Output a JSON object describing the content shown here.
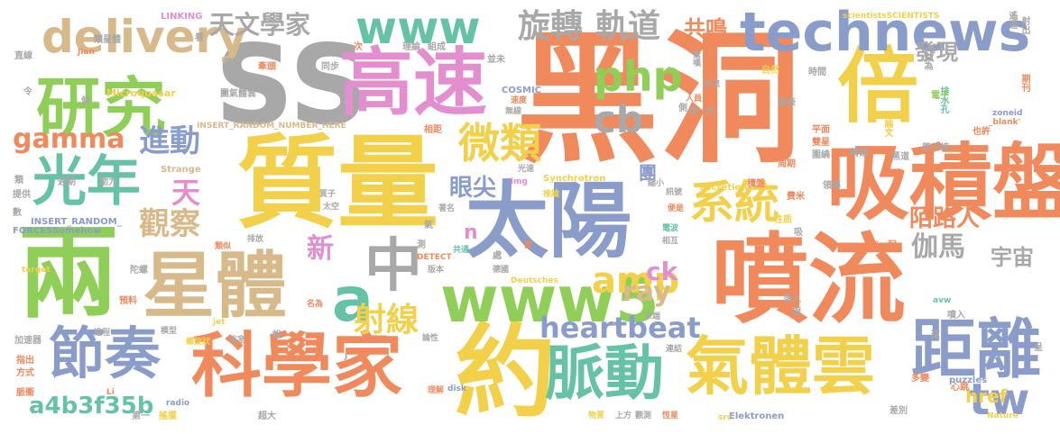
{
  "palette": {
    "orange": "#f08a5d",
    "gray": "#a8a8a8",
    "blue": "#8a9cc9",
    "green": "#8fcf57",
    "yellow": "#f3d04a",
    "tan": "#d8b98a",
    "pink": "#e38fcf",
    "teal": "#66c2a5"
  },
  "words": [
    {
      "text": "黑洞",
      "color": "orange"
    },
    {
      "text": "SS",
      "color": "gray"
    },
    {
      "text": "質量",
      "color": "yellow"
    },
    {
      "text": "噴流",
      "color": "orange"
    },
    {
      "text": "約",
      "color": "yellow"
    },
    {
      "text": "太陽",
      "color": "blue"
    },
    {
      "text": "倍",
      "color": "yellow"
    },
    {
      "text": "兩",
      "color": "green"
    },
    {
      "text": "吸積盤",
      "color": "orange"
    },
    {
      "text": "科學家",
      "color": "orange"
    },
    {
      "text": "星體",
      "color": "tan"
    },
    {
      "text": "高速",
      "color": "pink"
    },
    {
      "text": "研究",
      "color": "green"
    },
    {
      "text": "氣體雲",
      "color": "yellow"
    },
    {
      "text": "距離",
      "color": "blue"
    },
    {
      "text": "technews",
      "color": "blue"
    },
    {
      "text": "www5",
      "color": "green"
    },
    {
      "text": "脈動",
      "color": "teal"
    },
    {
      "text": "節奏",
      "color": "blue"
    },
    {
      "text": "光年",
      "color": "teal"
    },
    {
      "text": "delivery",
      "color": "tan"
    },
    {
      "text": "www",
      "color": "teal"
    },
    {
      "text": "中",
      "color": "gray"
    },
    {
      "text": "系統",
      "color": "yellow"
    },
    {
      "text": "微類",
      "color": "yellow"
    },
    {
      "text": "旋轉",
      "color": "gray"
    },
    {
      "text": "軌道",
      "color": "gray"
    },
    {
      "text": "天文學家",
      "color": "gray"
    },
    {
      "text": "php",
      "color": "green"
    },
    {
      "text": "amp",
      "color": "yellow"
    },
    {
      "text": "cb",
      "color": "gray"
    },
    {
      "text": "tw",
      "color": "blue"
    },
    {
      "text": "a",
      "color": "teal"
    },
    {
      "text": "進動",
      "color": "blue"
    },
    {
      "text": "觀察",
      "color": "tan"
    },
    {
      "text": "射線",
      "color": "yellow"
    },
    {
      "text": "heartbeat",
      "color": "blue"
    },
    {
      "text": "gamma",
      "color": "orange"
    },
    {
      "text": "a4b3f35b",
      "color": "teal"
    },
    {
      "text": "天",
      "color": "pink"
    },
    {
      "text": "新",
      "color": "pink"
    },
    {
      "text": "ray",
      "color": "tan"
    },
    {
      "text": "伽馬",
      "color": "gray"
    },
    {
      "text": "宇宙",
      "color": "gray"
    },
    {
      "text": "陌路人",
      "color": "orange"
    },
    {
      "text": "發現",
      "color": "gray"
    },
    {
      "text": "共鳴",
      "color": "orange"
    },
    {
      "text": "眼尖",
      "color": "blue"
    },
    {
      "text": "ck",
      "color": "pink"
    },
    {
      "text": "href",
      "color": "yellow"
    },
    {
      "text": "n",
      "color": "pink"
    },
    {
      "text": "團",
      "color": "blue"
    },
    {
      "text": "LINKING",
      "color": "pink"
    },
    {
      "text": "Microquasar",
      "color": "yellow"
    },
    {
      "text": "INSERT_RANDOM_NUMBER_HERE",
      "color": "tan"
    },
    {
      "text": "COSMIC",
      "color": "blue"
    },
    {
      "text": "INSERT_RANDOM_",
      "color": "blue"
    },
    {
      "text": "FORCESSomehow",
      "color": "blue"
    },
    {
      "text": "Synchrotron",
      "color": "yellow"
    },
    {
      "text": "accretion",
      "color": "yellow"
    },
    {
      "text": "Strange",
      "color": "tan"
    },
    {
      "text": "DETECT",
      "color": "orange"
    },
    {
      "text": "Deutsches",
      "color": "yellow"
    },
    {
      "text": "Elektronen",
      "color": "blue"
    },
    {
      "text": "puzzles",
      "color": "blue"
    },
    {
      "text": "Nature",
      "color": "yellow"
    },
    {
      "text": "scientistsSCIENTISTS",
      "color": "yellow"
    },
    {
      "text": "zoneid",
      "color": "blue"
    },
    {
      "text": "_blank'",
      "color": "orange"
    },
    {
      "text": "target",
      "color": "yellow"
    },
    {
      "text": "disk",
      "color": "blue"
    },
    {
      "text": "radio",
      "color": "blue"
    },
    {
      "text": "jet",
      "color": "yellow"
    },
    {
      "text": "img",
      "color": "pink"
    },
    {
      "text": "src",
      "color": "yellow"
    },
    {
      "text": "avw",
      "color": "teal"
    },
    {
      "text": "Jian",
      "color": "orange"
    },
    {
      "text": "Li",
      "color": "orange"
    },
    {
      "text": "J",
      "color": "gray"
    },
    {
      "text": "論文",
      "color": "yellow"
    },
    {
      "text": "自然",
      "color": "yellow"
    },
    {
      "text": "時間",
      "color": "gray"
    },
    {
      "text": "排水孔",
      "color": "teal"
    },
    {
      "text": "電子",
      "color": "green"
    },
    {
      "text": "平面",
      "color": "orange"
    },
    {
      "text": "雙星",
      "color": "orange"
    },
    {
      "text": "也許",
      "color": "orange"
    },
    {
      "text": "原子核",
      "color": "gray"
    },
    {
      "text": "黑道",
      "color": "gray"
    },
    {
      "text": "周期",
      "color": "orange"
    },
    {
      "text": "圍繞",
      "color": "gray"
    },
    {
      "text": "精確",
      "color": "gray"
    },
    {
      "text": "領導",
      "color": "gray"
    },
    {
      "text": "費米",
      "color": "orange"
    },
    {
      "text": "積盤",
      "color": "orange"
    },
    {
      "text": "性质",
      "color": "yellow"
    },
    {
      "text": "在一起",
      "color": "orange"
    },
    {
      "text": "落入",
      "color": "gray"
    },
    {
      "text": "噴入",
      "color": "gray"
    },
    {
      "text": "多變",
      "color": "orange"
    },
    {
      "text": "差別",
      "color": "gray"
    },
    {
      "text": "心跳",
      "color": "orange"
    },
    {
      "text": "遙遠",
      "color": "gray"
    },
    {
      "text": "射出",
      "color": "gray"
    },
    {
      "text": "期刊",
      "color": "orange"
    },
    {
      "text": "點為",
      "color": "gray"
    },
    {
      "text": "發表",
      "color": "gray"
    },
    {
      "text": "人員",
      "color": "orange"
    },
    {
      "text": "進一步",
      "color": "gray"
    },
    {
      "text": "驚嘆",
      "color": "gray"
    },
    {
      "text": "水流",
      "color": "gray"
    },
    {
      "text": "速度",
      "color": "orange"
    },
    {
      "text": "無線",
      "color": "gray"
    },
    {
      "text": "光速",
      "color": "gray"
    },
    {
      "text": "縮小",
      "color": "gray"
    },
    {
      "text": "訊號",
      "color": "gray"
    },
    {
      "text": "便是",
      "color": "orange"
    },
    {
      "text": "電波",
      "color": "teal"
    },
    {
      "text": "相互",
      "color": "gray"
    },
    {
      "text": "末端",
      "color": "gray"
    },
    {
      "text": "連結",
      "color": "gray"
    },
    {
      "text": "觀測",
      "color": "gray"
    },
    {
      "text": "恆星",
      "color": "orange"
    },
    {
      "text": "上方",
      "color": "gray"
    },
    {
      "text": "物質",
      "color": "yellow"
    },
    {
      "text": "理解",
      "color": "orange"
    },
    {
      "text": "論性",
      "color": "gray"
    },
    {
      "text": "數百萬",
      "color": "orange"
    },
    {
      "text": "德國",
      "color": "gray"
    },
    {
      "text": "版本",
      "color": "gray"
    },
    {
      "text": "共通",
      "color": "teal"
    },
    {
      "text": "著名",
      "color": "gray"
    },
    {
      "text": "推論",
      "color": "yellow"
    },
    {
      "text": "太空",
      "color": "gray"
    },
    {
      "text": "質子",
      "color": "gray"
    },
    {
      "text": "名為",
      "color": "orange"
    },
    {
      "text": "類似",
      "color": "orange"
    },
    {
      "text": "排放",
      "color": "gray"
    },
    {
      "text": "模型",
      "color": "gray"
    },
    {
      "text": "螺旋狀",
      "color": "yellow"
    },
    {
      "text": "浴室",
      "color": "gray"
    },
    {
      "text": "過程",
      "color": "gray"
    },
    {
      "text": "加速器",
      "color": "gray"
    },
    {
      "text": "指出",
      "color": "orange"
    },
    {
      "text": "方式",
      "color": "orange"
    },
    {
      "text": "脈衝",
      "color": "orange"
    },
    {
      "text": "第一",
      "color": "gray"
    },
    {
      "text": "搖擺",
      "color": "yellow"
    },
    {
      "text": "超大",
      "color": "gray"
    },
    {
      "text": "預料",
      "color": "orange"
    },
    {
      "text": "陀螺",
      "color": "gray"
    },
    {
      "text": "提供",
      "color": "gray"
    },
    {
      "text": "數",
      "color": "gray"
    },
    {
      "text": "週期",
      "color": "gray"
    },
    {
      "text": "動力",
      "color": "gray"
    },
    {
      "text": "直線",
      "color": "gray"
    },
    {
      "text": "類星體",
      "color": "gray"
    },
    {
      "text": "團氣體雲",
      "color": "gray"
    },
    {
      "text": "牽頭",
      "color": "orange"
    },
    {
      "text": "同步",
      "color": "gray"
    },
    {
      "text": "理論",
      "color": "gray"
    },
    {
      "text": "組成",
      "color": "gray"
    },
    {
      "text": "並未",
      "color": "gray"
    },
    {
      "text": "相距",
      "color": "orange"
    },
    {
      "text": "次",
      "color": "orange"
    },
    {
      "text": "看",
      "color": "gray"
    },
    {
      "text": "令",
      "color": "gray"
    },
    {
      "text": "條",
      "color": "gray"
    },
    {
      "text": "類",
      "color": "gray"
    },
    {
      "text": "側",
      "color": "gray"
    },
    {
      "text": "氣",
      "color": "gray"
    },
    {
      "text": "測",
      "color": "gray"
    },
    {
      "text": "食",
      "color": "orange"
    },
    {
      "text": "處",
      "color": "gray"
    },
    {
      "text": "吸",
      "color": "gray"
    },
    {
      "text": "呈",
      "color": "gray"
    },
    {
      "text": "說",
      "color": "gray"
    },
    {
      "text": "道",
      "color": "gray"
    },
    {
      "text": "旋",
      "color": "gray"
    },
    {
      "text": "積聚",
      "color": "gray"
    }
  ]
}
